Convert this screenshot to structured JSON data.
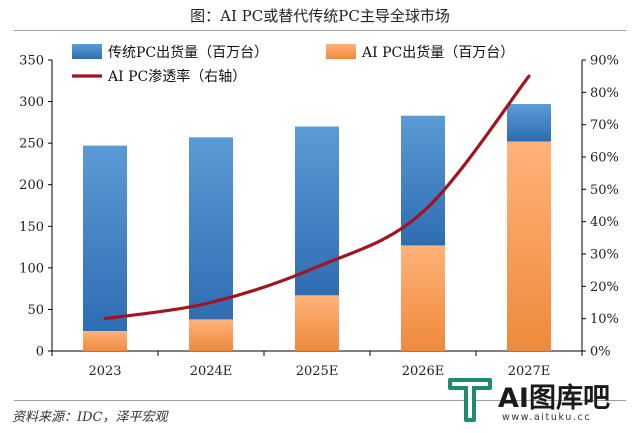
{
  "page_title": "图：AI PC或替代传统PC主导全球市场",
  "source": "资料来源：IDC，泽平宏观",
  "watermark": {
    "brand": "AI图库吧",
    "url": "www.aituku.cc",
    "logo_icon": "aituku-logo-icon"
  },
  "colors": {
    "traditional_top": "#5b9bd5",
    "traditional_bottom": "#2e6db2",
    "aipc_top": "#ffb27a",
    "aipc_bottom": "#ef8a3a",
    "penetration_line": "#a31320"
  },
  "chart_data": {
    "type": "bar",
    "stacked": true,
    "categories": [
      "2023",
      "2024E",
      "2025E",
      "2026E",
      "2027E"
    ],
    "series": [
      {
        "name": "AI PC出货量（百万台）",
        "type": "bar",
        "axis": "left",
        "values": [
          24,
          38,
          67,
          127,
          252
        ]
      },
      {
        "name": "传统PC出货量（百万台）",
        "type": "bar",
        "axis": "left",
        "values": [
          223,
          219,
          203,
          156,
          45
        ]
      },
      {
        "name": "AI PC渗透率（右轴）",
        "type": "line",
        "axis": "right",
        "values": [
          10,
          15,
          26,
          43,
          85
        ]
      }
    ],
    "y_left": {
      "min": 0,
      "max": 350,
      "ticks": [
        0,
        50,
        100,
        150,
        200,
        250,
        300,
        350
      ]
    },
    "y_right": {
      "min": 0,
      "max": 90,
      "ticks": [
        "0%",
        "10%",
        "20%",
        "30%",
        "40%",
        "50%",
        "60%",
        "70%",
        "80%",
        "90%"
      ]
    },
    "legend": {
      "placement": "top",
      "entries": [
        "传统PC出货量（百万台）",
        "AI PC出货量（百万台）",
        "AI PC渗透率（右轴）"
      ]
    },
    "grid": false
  }
}
